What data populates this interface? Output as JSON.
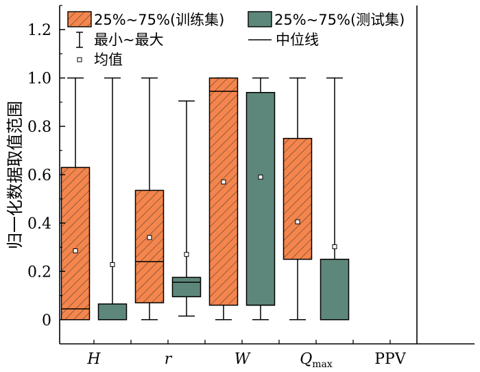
{
  "chart_data": {
    "type": "box",
    "ylabel": "归一化数据取值范围",
    "ylim": [
      -0.1,
      1.3
    ],
    "yticks": [
      "0",
      "0.2",
      "0.4",
      "0.6",
      "0.8",
      "1.0",
      "1.2"
    ],
    "ytick_values": [
      0,
      0.2,
      0.4,
      0.6,
      0.8,
      1.0,
      1.2
    ],
    "categories": [
      {
        "name": "H"
      },
      {
        "name": "r"
      },
      {
        "name": "W"
      },
      {
        "name": "Q",
        "sub": "max"
      },
      {
        "name": "PPV"
      }
    ],
    "series": [
      {
        "name": "25%~75%(训练集)",
        "color": "#f4854c",
        "hatch": true,
        "boxes": [
          {
            "category": "H",
            "min": 0,
            "q1": 0,
            "median": 0.045,
            "q3": 0.63,
            "max": 1.0,
            "mean": 0.285
          },
          {
            "category": "r",
            "min": 0,
            "q1": 0.07,
            "median": 0.24,
            "q3": 0.535,
            "max": 1.0,
            "mean": 0.34
          },
          {
            "category": "W",
            "min": 0,
            "q1": 0.06,
            "median": 0.945,
            "q3": 1.0,
            "max": 1.0,
            "mean": 0.57
          },
          {
            "category": "Qmax",
            "min": 0,
            "q1": 0.25,
            "median": 0.25,
            "q3": 0.75,
            "max": 1.0,
            "mean": 0.405
          }
        ]
      },
      {
        "name": "25%~75%(测试集)",
        "color": "#5e877b",
        "hatch": false,
        "boxes": [
          {
            "category": "H",
            "min": 0,
            "q1": 0,
            "median": 0,
            "q3": 0.065,
            "max": 1.0,
            "mean": 0.228
          },
          {
            "category": "r",
            "min": 0.015,
            "q1": 0.095,
            "median": 0.155,
            "q3": 0.175,
            "max": 0.905,
            "mean": 0.27
          },
          {
            "category": "W",
            "min": 0,
            "q1": 0.06,
            "median": 0.06,
            "q3": 0.94,
            "max": 1.0,
            "mean": 0.59
          },
          {
            "category": "Qmax",
            "min": 0,
            "q1": 0,
            "median": 0,
            "q3": 0.25,
            "max": 1.0,
            "mean": 0.302
          }
        ]
      }
    ],
    "legend": {
      "train_box": "25%~75%(训练集)",
      "test_box": "25%~75%(测试集)",
      "whisker": "最小~最大",
      "median": "中位线",
      "mean": "均值"
    }
  }
}
